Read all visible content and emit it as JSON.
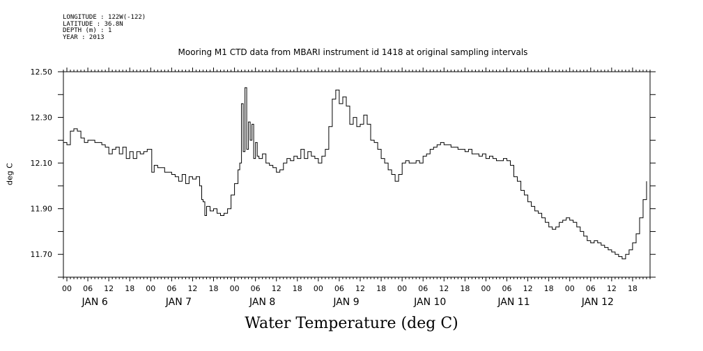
{
  "meta": {
    "longitude": "LONGITUDE : 122W(-122)",
    "latitude": "LATITUDE : 36.8N",
    "depth": "DEPTH (m) : 1",
    "year": "YEAR : 2013"
  },
  "chart_data": {
    "type": "line",
    "title": "Mooring M1 CTD data from MBARI instrument id 1418 at original sampling intervals",
    "xlabel": "Water Temperature (deg C)",
    "ylabel": "deg C",
    "ylim": [
      11.6,
      12.5
    ],
    "yticks": [
      "12.50",
      "12.30",
      "12.10",
      "11.90",
      "11.70"
    ],
    "xlim_hours": [
      -1,
      167
    ],
    "x_tick_labels": [
      "00",
      "06",
      "12",
      "18"
    ],
    "day_labels": [
      "JAN  6",
      "JAN  7",
      "JAN  8",
      "JAN  9",
      "JAN 10",
      "JAN 11",
      "JAN 12"
    ],
    "grid": false,
    "series": [
      {
        "x_unit": "hours since JAN 6 00:00",
        "points": [
          [
            -1,
            12.19
          ],
          [
            0,
            12.18
          ],
          [
            1,
            12.24
          ],
          [
            2,
            12.25
          ],
          [
            3,
            12.24
          ],
          [
            4,
            12.21
          ],
          [
            5,
            12.19
          ],
          [
            6,
            12.2
          ],
          [
            8,
            12.19
          ],
          [
            10,
            12.18
          ],
          [
            11,
            12.17
          ],
          [
            12,
            12.14
          ],
          [
            13,
            12.16
          ],
          [
            14,
            12.17
          ],
          [
            15,
            12.14
          ],
          [
            16,
            12.17
          ],
          [
            17,
            12.12
          ],
          [
            18,
            12.15
          ],
          [
            19,
            12.12
          ],
          [
            20,
            12.15
          ],
          [
            21,
            12.14
          ],
          [
            22,
            12.15
          ],
          [
            23,
            12.16
          ],
          [
            24,
            12.16
          ],
          [
            24.3,
            12.06
          ],
          [
            25,
            12.09
          ],
          [
            26,
            12.08
          ],
          [
            27,
            12.08
          ],
          [
            28,
            12.06
          ],
          [
            30,
            12.05
          ],
          [
            31,
            12.04
          ],
          [
            32,
            12.02
          ],
          [
            33,
            12.05
          ],
          [
            34,
            12.01
          ],
          [
            35,
            12.04
          ],
          [
            36,
            12.03
          ],
          [
            37,
            12.04
          ],
          [
            38,
            12.0
          ],
          [
            38.6,
            11.94
          ],
          [
            39,
            11.93
          ],
          [
            39.5,
            11.87
          ],
          [
            40,
            11.91
          ],
          [
            41,
            11.89
          ],
          [
            42,
            11.9
          ],
          [
            43,
            11.88
          ],
          [
            44,
            11.87
          ],
          [
            45,
            11.88
          ],
          [
            46,
            11.9
          ],
          [
            47,
            11.96
          ],
          [
            48,
            12.01
          ],
          [
            49,
            12.07
          ],
          [
            49.5,
            12.1
          ],
          [
            50,
            12.36
          ],
          [
            50.5,
            12.15
          ],
          [
            51,
            12.43
          ],
          [
            51.5,
            12.16
          ],
          [
            52,
            12.28
          ],
          [
            52.5,
            12.2
          ],
          [
            53,
            12.27
          ],
          [
            53.5,
            12.12
          ],
          [
            54,
            12.19
          ],
          [
            54.5,
            12.13
          ],
          [
            55,
            12.12
          ],
          [
            56,
            12.14
          ],
          [
            57,
            12.1
          ],
          [
            58,
            12.09
          ],
          [
            59,
            12.08
          ],
          [
            60,
            12.06
          ],
          [
            61,
            12.07
          ],
          [
            62,
            12.1
          ],
          [
            63,
            12.12
          ],
          [
            64,
            12.11
          ],
          [
            65,
            12.13
          ],
          [
            66,
            12.12
          ],
          [
            67,
            12.16
          ],
          [
            68,
            12.12
          ],
          [
            69,
            12.15
          ],
          [
            70,
            12.13
          ],
          [
            71,
            12.12
          ],
          [
            72,
            12.1
          ],
          [
            73,
            12.13
          ],
          [
            74,
            12.16
          ],
          [
            75,
            12.26
          ],
          [
            76,
            12.38
          ],
          [
            77,
            12.42
          ],
          [
            78,
            12.36
          ],
          [
            79,
            12.39
          ],
          [
            80,
            12.35
          ],
          [
            81,
            12.27
          ],
          [
            82,
            12.3
          ],
          [
            83,
            12.26
          ],
          [
            84,
            12.27
          ],
          [
            85,
            12.31
          ],
          [
            86,
            12.27
          ],
          [
            87,
            12.2
          ],
          [
            88,
            12.19
          ],
          [
            89,
            12.16
          ],
          [
            90,
            12.12
          ],
          [
            91,
            12.1
          ],
          [
            92,
            12.07
          ],
          [
            93,
            12.05
          ],
          [
            94,
            12.02
          ],
          [
            95,
            12.05
          ],
          [
            96,
            12.1
          ],
          [
            97,
            12.11
          ],
          [
            98,
            12.1
          ],
          [
            100,
            12.11
          ],
          [
            101,
            12.1
          ],
          [
            102,
            12.13
          ],
          [
            103,
            12.14
          ],
          [
            104,
            12.16
          ],
          [
            105,
            12.17
          ],
          [
            106,
            12.18
          ],
          [
            107,
            12.19
          ],
          [
            108,
            12.18
          ],
          [
            110,
            12.17
          ],
          [
            112,
            12.16
          ],
          [
            114,
            12.15
          ],
          [
            115,
            12.16
          ],
          [
            116,
            12.14
          ],
          [
            118,
            12.13
          ],
          [
            119,
            12.14
          ],
          [
            120,
            12.12
          ],
          [
            121,
            12.13
          ],
          [
            122,
            12.12
          ],
          [
            123,
            12.11
          ],
          [
            124,
            12.11
          ],
          [
            125,
            12.12
          ],
          [
            126,
            12.11
          ],
          [
            127,
            12.09
          ],
          [
            128,
            12.04
          ],
          [
            129,
            12.02
          ],
          [
            130,
            11.98
          ],
          [
            131,
            11.96
          ],
          [
            132,
            11.93
          ],
          [
            133,
            11.91
          ],
          [
            134,
            11.89
          ],
          [
            135,
            11.88
          ],
          [
            136,
            11.86
          ],
          [
            137,
            11.84
          ],
          [
            138,
            11.82
          ],
          [
            139,
            11.81
          ],
          [
            140,
            11.82
          ],
          [
            141,
            11.84
          ],
          [
            142,
            11.85
          ],
          [
            143,
            11.86
          ],
          [
            144,
            11.85
          ],
          [
            145,
            11.84
          ],
          [
            146,
            11.82
          ],
          [
            147,
            11.8
          ],
          [
            148,
            11.78
          ],
          [
            149,
            11.76
          ],
          [
            150,
            11.75
          ],
          [
            151,
            11.76
          ],
          [
            152,
            11.75
          ],
          [
            153,
            11.74
          ],
          [
            154,
            11.73
          ],
          [
            155,
            11.72
          ],
          [
            156,
            11.71
          ],
          [
            157,
            11.7
          ],
          [
            158,
            11.69
          ],
          [
            159,
            11.68
          ],
          [
            160,
            11.7
          ],
          [
            161,
            11.72
          ],
          [
            162,
            11.75
          ],
          [
            163,
            11.79
          ],
          [
            164,
            11.86
          ],
          [
            165,
            11.94
          ],
          [
            166,
            12.02
          ]
        ]
      }
    ]
  }
}
